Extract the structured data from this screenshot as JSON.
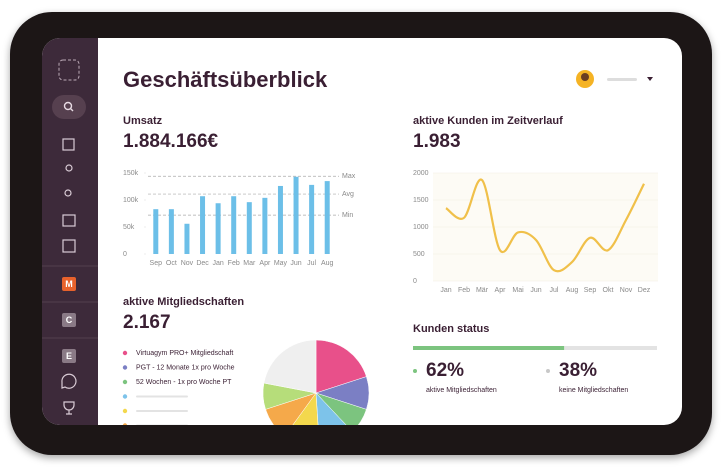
{
  "header": {
    "title": "Geschäftsüberblick"
  },
  "sidebar": {
    "letters": [
      "M",
      "C",
      "E"
    ]
  },
  "chart_data": [
    {
      "type": "bar",
      "title": "Umsatz",
      "headline": "1.884.166€",
      "categories": [
        "Sep",
        "Oct",
        "Nov",
        "Dec",
        "Jan",
        "Feb",
        "Mar",
        "Apr",
        "May",
        "Jun",
        "Jul",
        "Aug"
      ],
      "values": [
        83000,
        83000,
        56000,
        107000,
        94000,
        107000,
        96000,
        104000,
        126000,
        143000,
        128000,
        135000
      ],
      "color": "#6cbfe8",
      "ylim": [
        0,
        150000
      ],
      "yticks": [
        0,
        {
          "value": 50000,
          "label": "50k"
        },
        {
          "value": 100000,
          "label": "100k"
        },
        {
          "value": 150000,
          "label": "150k"
        }
      ],
      "reference_lines": [
        {
          "label": "Max",
          "value": 144000
        },
        {
          "label": "Avg",
          "value": 111000
        },
        {
          "label": "Min",
          "value": 72000
        }
      ]
    },
    {
      "type": "line",
      "title": "aktive Kunden im Zeitverlauf",
      "headline": "1.983",
      "categories": [
        "Jan",
        "Feb",
        "Mär",
        "Apr",
        "Mai",
        "Jun",
        "Jul",
        "Aug",
        "Sep",
        "Okt",
        "Nov",
        "Dez"
      ],
      "values": [
        1350,
        1170,
        1870,
        570,
        900,
        760,
        200,
        350,
        800,
        570,
        1130,
        1800
      ],
      "color": "#f0c04a",
      "ylim": [
        0,
        2000
      ],
      "yticks": [
        0,
        500,
        1000,
        1500,
        2000
      ]
    },
    {
      "type": "pie",
      "title": "aktive Mitgliedschaften",
      "headline": "2.167",
      "labels": [
        "Virtuagym PRO+ Mitgliedschaft",
        "PGT - 12 Monate 1x pro Woche",
        "52 Wochen - 1x pro Woche PT",
        null,
        null,
        null,
        null,
        null
      ],
      "values": [
        20,
        10,
        8,
        11,
        11,
        10,
        8,
        22
      ],
      "colors": [
        "#e8508a",
        "#7b7fc4",
        "#7cc47f",
        "#7dc3ea",
        "#f3d84d",
        "#f5a94a",
        "#b6dd7a",
        "#efefef"
      ]
    },
    {
      "type": "progress",
      "title": "Kunden status",
      "xlim": [
        0,
        100
      ],
      "values": [
        62,
        38
      ],
      "value_labels": [
        "62%",
        "38%"
      ],
      "labels": [
        "aktive Mitgliedschaften",
        "keine Mitgliedschaften"
      ],
      "colors": [
        "#7cc47f",
        "#e3e3e3"
      ]
    }
  ]
}
